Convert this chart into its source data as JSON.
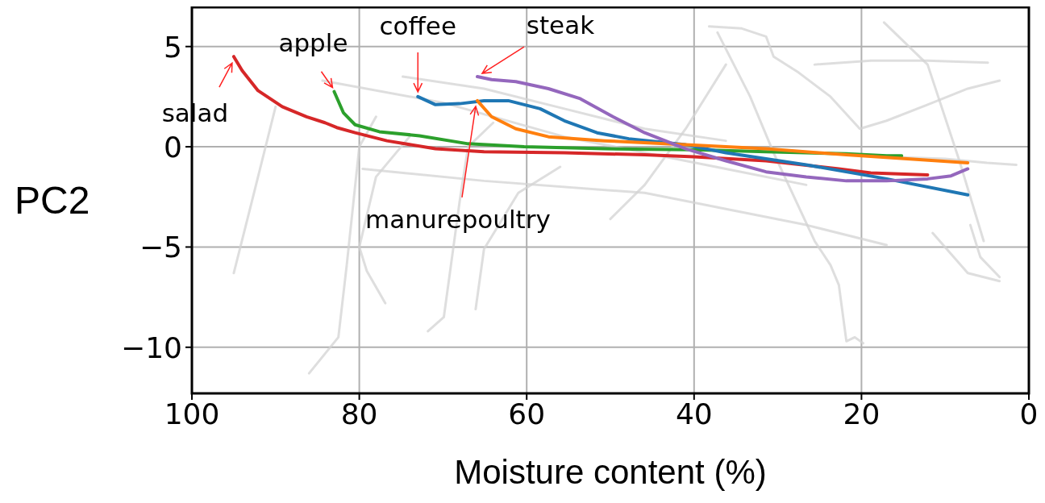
{
  "chart_data": {
    "type": "line",
    "xlabel": "Moisture content (%)",
    "ylabel": "PC2",
    "xlim": [
      100,
      0
    ],
    "xticks": [
      100,
      80,
      60,
      40,
      20,
      0
    ],
    "ylim": [
      -12.3,
      7
    ],
    "yticks": [
      -10,
      -5,
      0,
      5
    ],
    "grid": true,
    "line_style": "solid",
    "marker": "none",
    "series": [
      {
        "color": "#d3d3d3",
        "x": [
          95,
          93,
          90
        ],
        "values": [
          -6.3,
          -3,
          2
        ]
      },
      {
        "color": "#d3d3d3",
        "x": [
          86,
          82.5,
          81.5,
          80,
          78
        ],
        "values": [
          -11.3,
          -9.5,
          -5.9,
          0,
          1.5
        ]
      },
      {
        "color": "#d3d3d3",
        "x": [
          76.9,
          79.1,
          80,
          78,
          74
        ],
        "values": [
          -7.8,
          -6.2,
          -5,
          -1.5,
          0.5
        ]
      },
      {
        "color": "#d3d3d3",
        "x": [
          71.8,
          69.9,
          68,
          67,
          64
        ],
        "values": [
          -9.2,
          -8.5,
          -2.7,
          0,
          1.2
        ]
      },
      {
        "color": "#d3d3d3",
        "x": [
          66.1,
          65.1,
          61,
          56
        ],
        "values": [
          -8.1,
          -5.1,
          -2.3,
          -1
        ]
      },
      {
        "color": "#d3d3d3",
        "x": [
          17.3,
          12.1,
          8.3,
          5.4
        ],
        "values": [
          6.2,
          4.1,
          -0.7,
          -4.7
        ]
      },
      {
        "color": "#d3d3d3",
        "x": [
          38.2,
          34.3,
          31.4,
          30.5,
          27.5,
          23.7,
          20.2,
          17,
          12.1,
          7.3,
          3.5
        ],
        "values": [
          6,
          5.9,
          5.5,
          4.5,
          3.7,
          2.5,
          0.9,
          1.3,
          2.1,
          2.9,
          3.3
        ]
      },
      {
        "color": "#d3d3d3",
        "x": [
          37.2,
          33.3,
          30.5,
          25.6,
          23.7,
          22.7,
          21.8,
          20.8,
          19.8
        ],
        "values": [
          5.7,
          2.5,
          -0.3,
          -4.7,
          -5.9,
          -6.9,
          -9.7,
          -9.5,
          -9.8
        ]
      },
      {
        "color": "#d3d3d3",
        "x": [
          50,
          45.9,
          41,
          36.2
        ],
        "values": [
          -3.6,
          -1.9,
          0.9,
          4.1
        ]
      },
      {
        "color": "#d3d3d3",
        "x": [
          25.6,
          18.9,
          12.1,
          4.9
        ],
        "values": [
          4.1,
          4.3,
          4.3,
          4.2
        ]
      },
      {
        "color": "#d3d3d3",
        "x": [
          11.5,
          7.3,
          3.5
        ],
        "values": [
          -4.3,
          -6.3,
          -6.7
        ]
      },
      {
        "color": "#d3d3d3",
        "x": [
          7,
          5.8,
          3.5
        ],
        "values": [
          -3.9,
          -5.5,
          -6.5
        ]
      },
      {
        "color": "#d3d3d3",
        "x": [
          17,
          10,
          5,
          1.5
        ],
        "values": [
          -0.5,
          -0.6,
          -0.8,
          -0.9
        ]
      },
      {
        "color": "#d3d3d3",
        "x": [
          74.8,
          65.1,
          55.5,
          45.9,
          36.2
        ],
        "values": [
          3.5,
          2.9,
          1.9,
          0.9,
          0.3
        ]
      },
      {
        "color": "#d3d3d3",
        "x": [
          84.4,
          70,
          55.5,
          36.2,
          26.6
        ],
        "values": [
          3.3,
          2.2,
          0.5,
          -1.1,
          -1.9
        ]
      },
      {
        "color": "#d3d3d3",
        "x": [
          79.6,
          65.1,
          45.9,
          36.2,
          26.6,
          17
        ],
        "values": [
          -1.1,
          -1.7,
          -2.3,
          -3.1,
          -3.9,
          -4.9
        ]
      },
      {
        "name": "salad",
        "color": "#d62728",
        "x": [
          95,
          94,
          92.1,
          89.2,
          86.3,
          84.1,
          82.7,
          80.5,
          76.7,
          70.9,
          65.1,
          55.5,
          45.9,
          40,
          31.4,
          22.7,
          18.9,
          12.1
        ],
        "values": [
          4.5,
          3.8,
          2.8,
          2.0,
          1.5,
          1.2,
          0.96,
          0.7,
          0.3,
          -0.1,
          -0.25,
          -0.3,
          -0.4,
          -0.5,
          -0.7,
          -1.1,
          -1.3,
          -1.4
        ]
      },
      {
        "name": "apple",
        "color": "#2ca02c",
        "x": [
          83,
          81.9,
          80.5,
          77.6,
          72.8,
          67,
          60.3,
          50.7,
          40,
          31.4,
          21.8,
          17,
          15.2
        ],
        "values": [
          2.75,
          1.7,
          1.1,
          0.75,
          0.55,
          0.15,
          0,
          -0.1,
          -0.15,
          -0.25,
          -0.35,
          -0.45,
          -0.45
        ]
      },
      {
        "name": "coffee",
        "color": "#1f77b4",
        "x": [
          73,
          70.9,
          68,
          65.1,
          62.2,
          58.4,
          55.5,
          51.6,
          47.8,
          41,
          36.2,
          26.6,
          17,
          7.3
        ],
        "values": [
          2.5,
          2.1,
          2.15,
          2.3,
          2.3,
          1.9,
          1.3,
          0.7,
          0.4,
          0.1,
          -0.3,
          -0.9,
          -1.6,
          -2.4
        ]
      },
      {
        "name": "manurepoultry",
        "color": "#ff7f0e",
        "x": [
          65.9,
          64.2,
          61.3,
          57.4,
          50.7,
          41,
          31.4,
          21.8,
          7.3
        ],
        "values": [
          2.3,
          1.5,
          0.9,
          0.5,
          0.3,
          0.1,
          -0.1,
          -0.4,
          -0.8
        ]
      },
      {
        "name": "steak",
        "color": "#9467bd",
        "x": [
          65.9,
          64.2,
          61.3,
          57.4,
          53.6,
          49.7,
          45.9,
          41,
          36.2,
          31.4,
          26.6,
          21.8,
          17,
          12.1,
          9.3,
          7.3
        ],
        "values": [
          3.5,
          3.35,
          3.25,
          2.9,
          2.4,
          1.5,
          0.7,
          -0.1,
          -0.7,
          -1.25,
          -1.5,
          -1.7,
          -1.7,
          -1.6,
          -1.45,
          -1.1
        ]
      }
    ]
  }
}
